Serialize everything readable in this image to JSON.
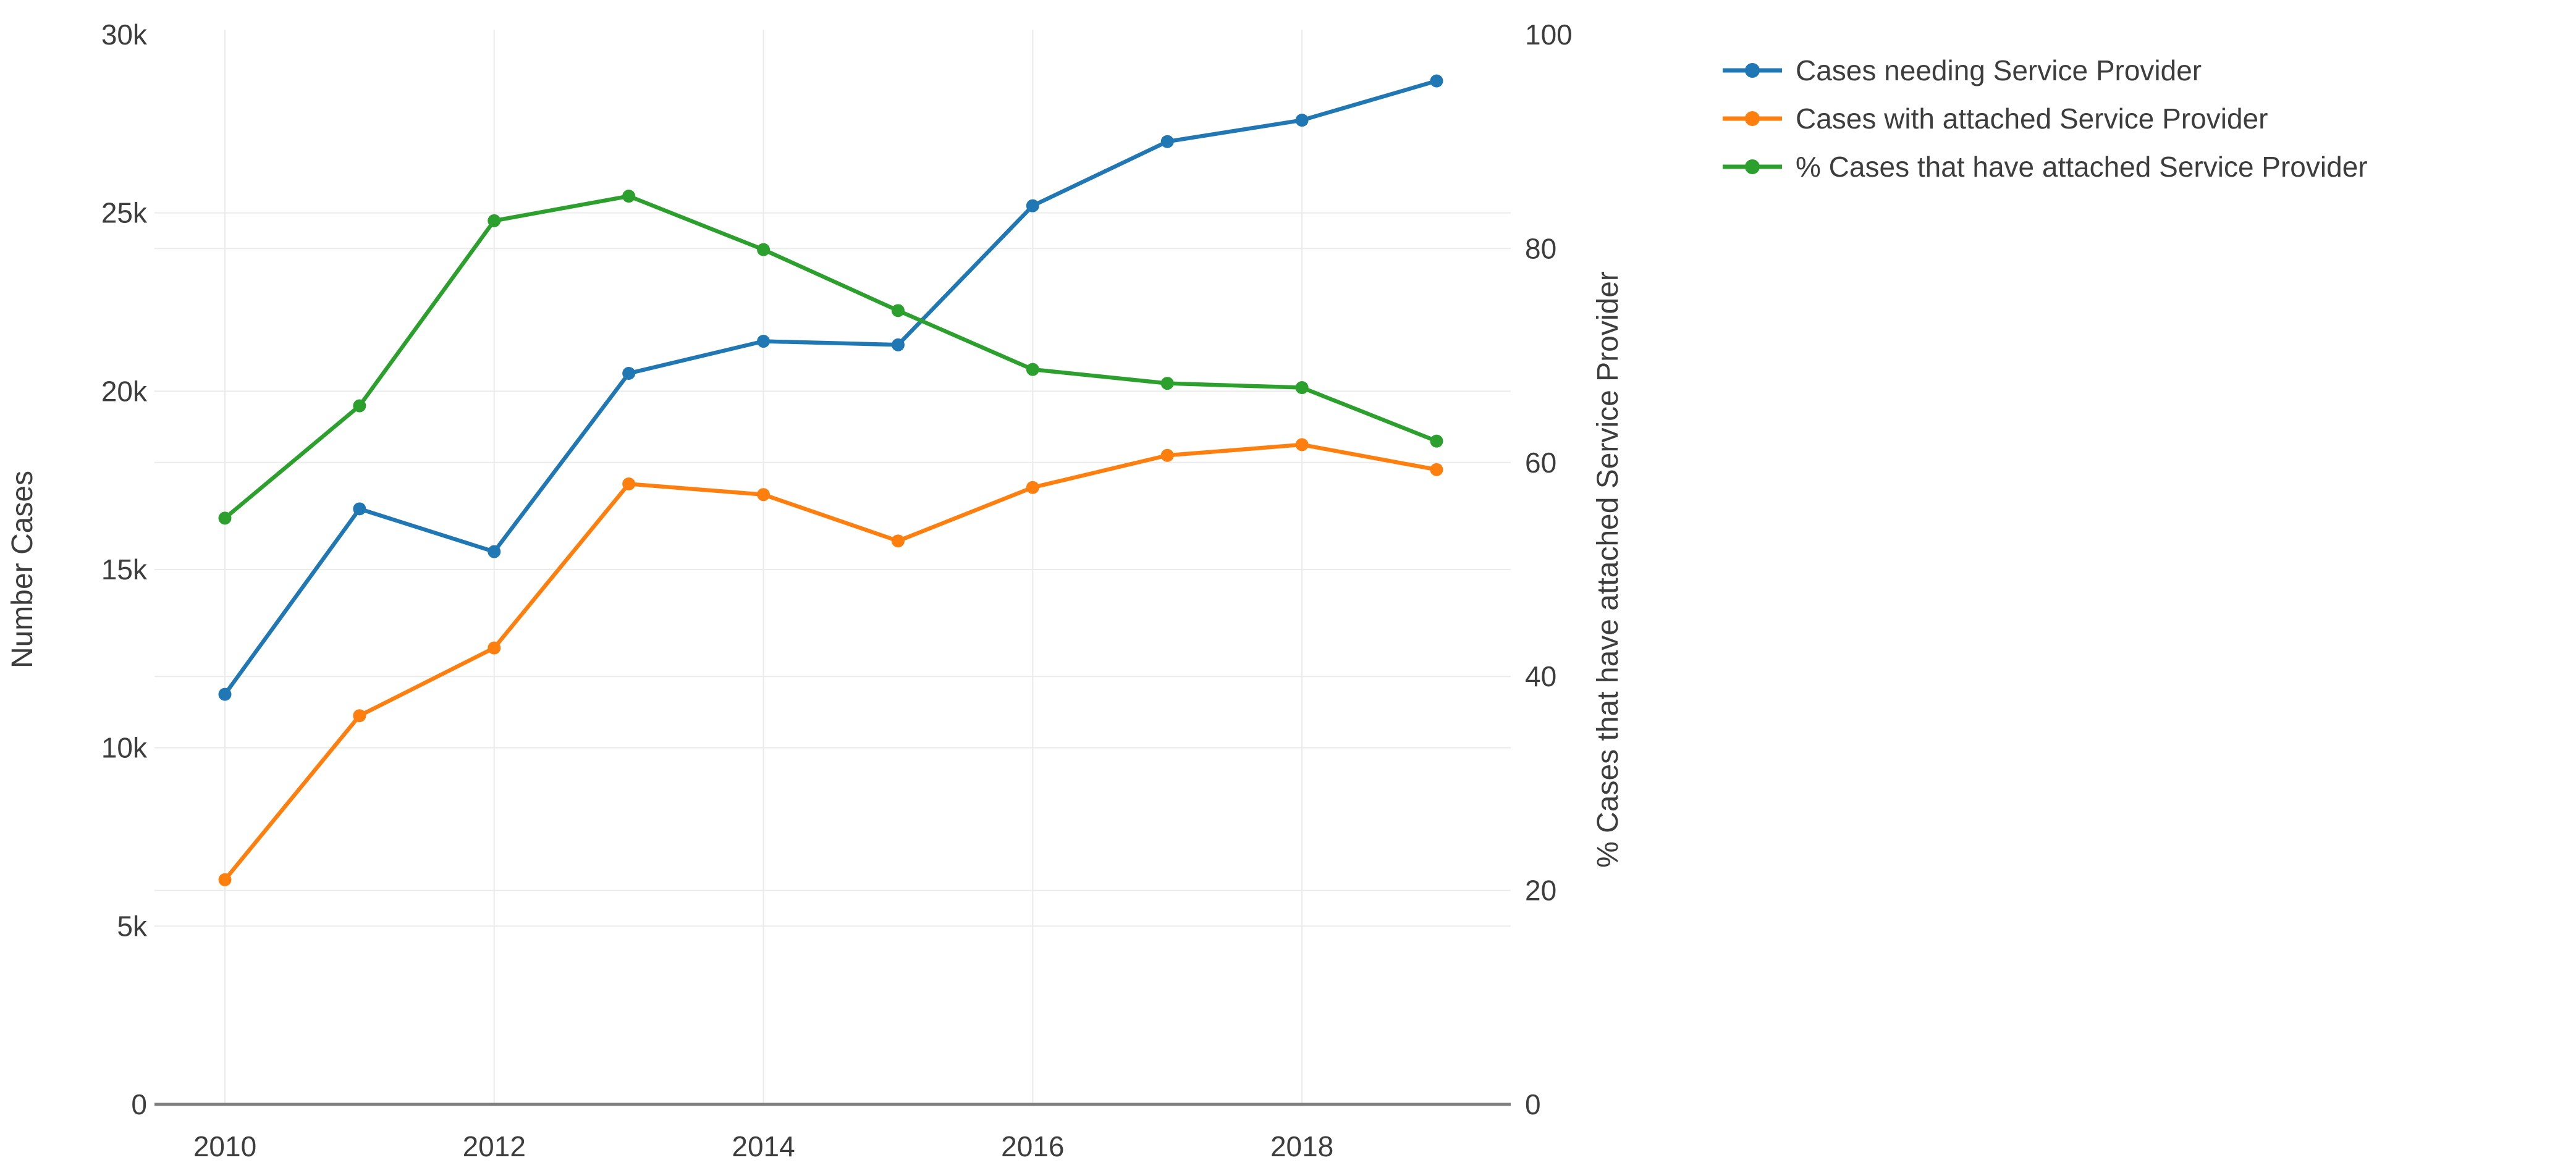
{
  "chart_data": {
    "type": "line",
    "title": "",
    "x": [
      2010,
      2011,
      2012,
      2013,
      2014,
      2015,
      2016,
      2017,
      2018,
      2019
    ],
    "x_ticks": [
      2010,
      2012,
      2014,
      2016,
      2018
    ],
    "x_tick_labels": [
      "2010",
      "2012",
      "2014",
      "2016",
      "2018"
    ],
    "y_left": {
      "title": "Number Cases",
      "range": [
        0,
        30000
      ],
      "ticks": [
        0,
        5000,
        10000,
        15000,
        20000,
        25000,
        30000
      ],
      "tick_labels": [
        "0",
        "5k",
        "10k",
        "15k",
        "20k",
        "25k",
        "30k"
      ]
    },
    "y_right": {
      "title": "% Cases that have attached Service Provider",
      "range": [
        0,
        100
      ],
      "ticks": [
        0,
        20,
        40,
        60,
        80,
        100
      ],
      "tick_labels": [
        "0",
        "20",
        "40",
        "60",
        "80",
        "100"
      ]
    },
    "series": [
      {
        "name": "Cases needing Service Provider",
        "color": "#1f77b4",
        "axis": "left",
        "values": [
          11500,
          16700,
          15500,
          20500,
          21400,
          21300,
          25200,
          27000,
          27600,
          28700
        ]
      },
      {
        "name": "Cases with attached Service Provider",
        "color": "#ff7f0e",
        "axis": "left",
        "values": [
          6300,
          10900,
          12800,
          17400,
          17100,
          15800,
          17300,
          18200,
          18500,
          17800
        ]
      },
      {
        "name": "% Cases that have attached Service Provider",
        "color": "#2ca02c",
        "axis": "right",
        "values": [
          54.8,
          65.3,
          82.6,
          84.9,
          79.9,
          74.2,
          68.7,
          67.4,
          67.0,
          62.0
        ]
      }
    ],
    "legend_position": "top-right",
    "grid": true,
    "marker": "circle-on-line"
  },
  "colors": {
    "background": "#ffffff",
    "grid": "#ebebeb",
    "axis_line": "#7f7f7f",
    "text": "#3d3d3d"
  }
}
